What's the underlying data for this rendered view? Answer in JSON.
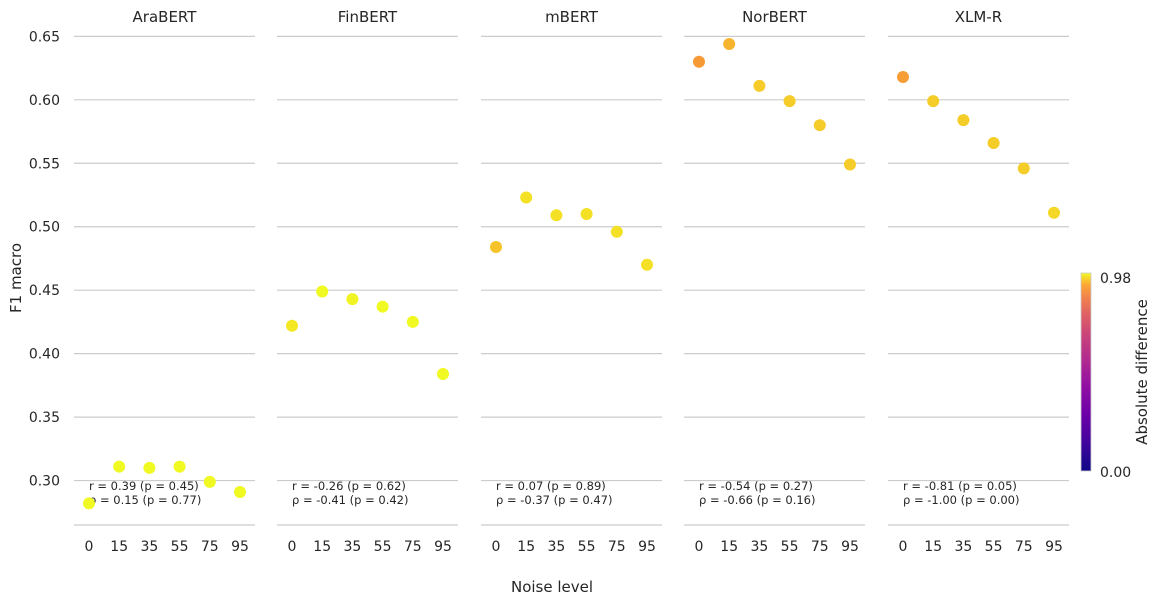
{
  "chart_data": {
    "type": "scatter",
    "xlabel": "Noise level",
    "ylabel": "F1 macro",
    "x_categories": [
      "0",
      "15",
      "35",
      "55",
      "75",
      "95"
    ],
    "y_ticks": [
      "0.30",
      "0.35",
      "0.40",
      "0.45",
      "0.50",
      "0.55",
      "0.60",
      "0.65"
    ],
    "ylim": [
      0.265,
      0.655
    ],
    "grid": "horizontal",
    "colorbar": {
      "label": "Absolute  difference",
      "min_label": "0.00",
      "max_label": "0.98",
      "min": 0.0,
      "max": 0.98,
      "colormap": "plasma"
    },
    "panels": [
      {
        "title": "AraBERT",
        "values": [
          0.282,
          0.311,
          0.31,
          0.311,
          0.299,
          0.291
        ],
        "colors": [
          "#f0f921",
          "#f0f921",
          "#f0f921",
          "#f0f921",
          "#f0f921",
          "#f0f921"
        ],
        "annot_r": "r = 0.39 (p = 0.45)",
        "annot_rho": "ρ = 0.15 (p = 0.77)"
      },
      {
        "title": "FinBERT",
        "values": [
          0.422,
          0.449,
          0.443,
          0.437,
          0.425,
          0.384
        ],
        "colors": [
          "#f4e825",
          "#f0f921",
          "#f1f422",
          "#f0f921",
          "#f0f921",
          "#f0f921"
        ],
        "annot_r": "r = -0.26 (p = 0.62)",
        "annot_rho": "ρ = -0.41 (p = 0.42)"
      },
      {
        "title": "mBERT",
        "values": [
          0.484,
          0.523,
          0.509,
          0.51,
          0.496,
          0.47
        ],
        "colors": [
          "#f6c42a",
          "#f4e024",
          "#f4e024",
          "#f4e024",
          "#f4e024",
          "#f4e024"
        ],
        "annot_r": "r = 0.07 (p = 0.89)",
        "annot_rho": "ρ = -0.37 (p = 0.47)"
      },
      {
        "title": "NorBERT",
        "values": [
          0.63,
          0.644,
          0.611,
          0.599,
          0.58,
          0.549
        ],
        "colors": [
          "#f79a36",
          "#f7b52f",
          "#f6cc2a",
          "#f6cc2a",
          "#f6cc2a",
          "#f6cc2a"
        ],
        "annot_r": "r = -0.54 (p = 0.27)",
        "annot_rho": "ρ = -0.66 (p = 0.16)"
      },
      {
        "title": "XLM-R",
        "values": [
          0.618,
          0.599,
          0.584,
          0.566,
          0.546,
          0.511
        ],
        "colors": [
          "#f79d35",
          "#f5cd28",
          "#f5cd28",
          "#f5cd28",
          "#f5cd28",
          "#f5d727"
        ],
        "annot_r": "r = -0.81 (p = 0.05)",
        "annot_rho": "ρ = -1.00 (p = 0.00)"
      }
    ]
  }
}
